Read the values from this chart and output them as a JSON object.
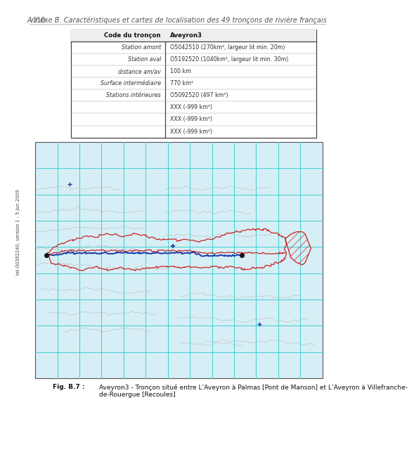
{
  "page_number": "210",
  "header_text": "Annexe B. Caractéristiques et cartes de localisation des 49 tronçons de rivière français",
  "table_col1_header": "Code du tronçon",
  "table_col2_header": "Aveyron3",
  "table_rows": [
    [
      "Station amont",
      "O5042510 (270km², largeur lit min. 20m)"
    ],
    [
      "Station aval",
      "O5192520 (1040km², largeur lit min. 30m)"
    ],
    [
      "distance am/av",
      "100 km"
    ],
    [
      "Surface intermédiaire",
      "770 km²"
    ],
    [
      "Stations intérieures",
      "O5092520 (497 km²)"
    ],
    [
      "",
      "XXX (-999 km²)"
    ],
    [
      "",
      "XXX (-999 km²)"
    ],
    [
      "",
      "XXX (-999 km²)"
    ]
  ],
  "caption_bold": "Fig. B.7 :",
  "caption_text": " Aveyron3 - Tronçon situé entre L’Aveyron à Palmas [Pont de Manson] et L’Aveyron à Villefranche-\n        de-Rouergue [Recoules]",
  "page_bg": "#ffffff",
  "left_bar_color": "#d0dce8",
  "header_line_color": "#aaaaaa",
  "map_bg": "#d6eef5",
  "map_grid_color": "#3ecfcf",
  "map_border_color": "#555555",
  "river_color_red": "#cc2222",
  "river_color_blue": "#1a3aaa",
  "river_color_grey": "#aaaaaa",
  "watershed_color": "#cc2222",
  "table_header_bg": "#eeeeee",
  "sidebar_text": "tel-00392240, version 1 - 5 Jun 2009",
  "font_size_header": 6.5,
  "font_size_table": 6.2,
  "font_size_page": 7.0,
  "font_size_caption": 6.5
}
